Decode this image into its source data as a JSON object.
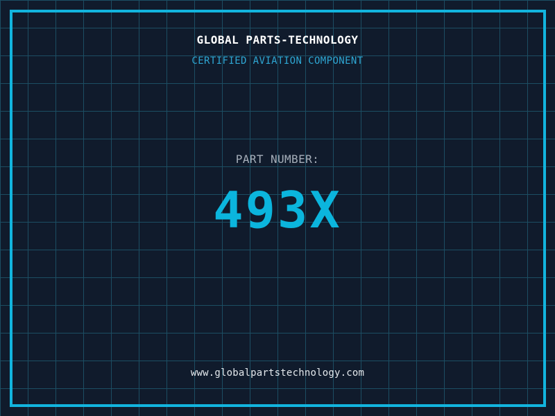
{
  "header": {
    "title": "GLOBAL PARTS-TECHNOLOGY",
    "subtitle": "CERTIFIED AVIATION COMPONENT"
  },
  "part": {
    "label": "PART NUMBER:",
    "number": "493X"
  },
  "footer": {
    "url": "www.globalpartstechnology.com"
  },
  "colors": {
    "background": "#101b2c",
    "grid_line": "#1c4e63",
    "frame": "#12b4de",
    "title_text": "#ffffff",
    "subtitle_text": "#2ea7d4",
    "label_text": "#a6afba",
    "part_number_text": "#0bb5dd",
    "url_text": "#e4e9ed"
  }
}
